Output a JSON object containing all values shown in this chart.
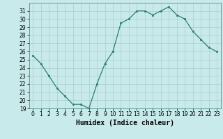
{
  "x": [
    0,
    1,
    2,
    3,
    4,
    5,
    6,
    7,
    8,
    9,
    10,
    11,
    12,
    13,
    14,
    15,
    16,
    17,
    18,
    19,
    20,
    21,
    22,
    23
  ],
  "y": [
    25.5,
    24.5,
    23.0,
    21.5,
    20.5,
    19.5,
    19.5,
    19.0,
    22.0,
    24.5,
    26.0,
    29.5,
    30.0,
    31.0,
    31.0,
    30.5,
    31.0,
    31.5,
    30.5,
    30.0,
    28.5,
    27.5,
    26.5,
    26.0
  ],
  "title": "",
  "xlabel": "Humidex (Indice chaleur)",
  "ylabel": "",
  "xlim": [
    -0.5,
    23.5
  ],
  "ylim": [
    19,
    32
  ],
  "yticks": [
    19,
    20,
    21,
    22,
    23,
    24,
    25,
    26,
    27,
    28,
    29,
    30,
    31
  ],
  "xticks": [
    0,
    1,
    2,
    3,
    4,
    5,
    6,
    7,
    8,
    9,
    10,
    11,
    12,
    13,
    14,
    15,
    16,
    17,
    18,
    19,
    20,
    21,
    22,
    23
  ],
  "line_color": "#2d7d6e",
  "marker_color": "#2d7d6e",
  "bg_color": "#c8eaea",
  "grid_color": "#aacccc",
  "label_fontsize": 7,
  "tick_fontsize": 5.5
}
